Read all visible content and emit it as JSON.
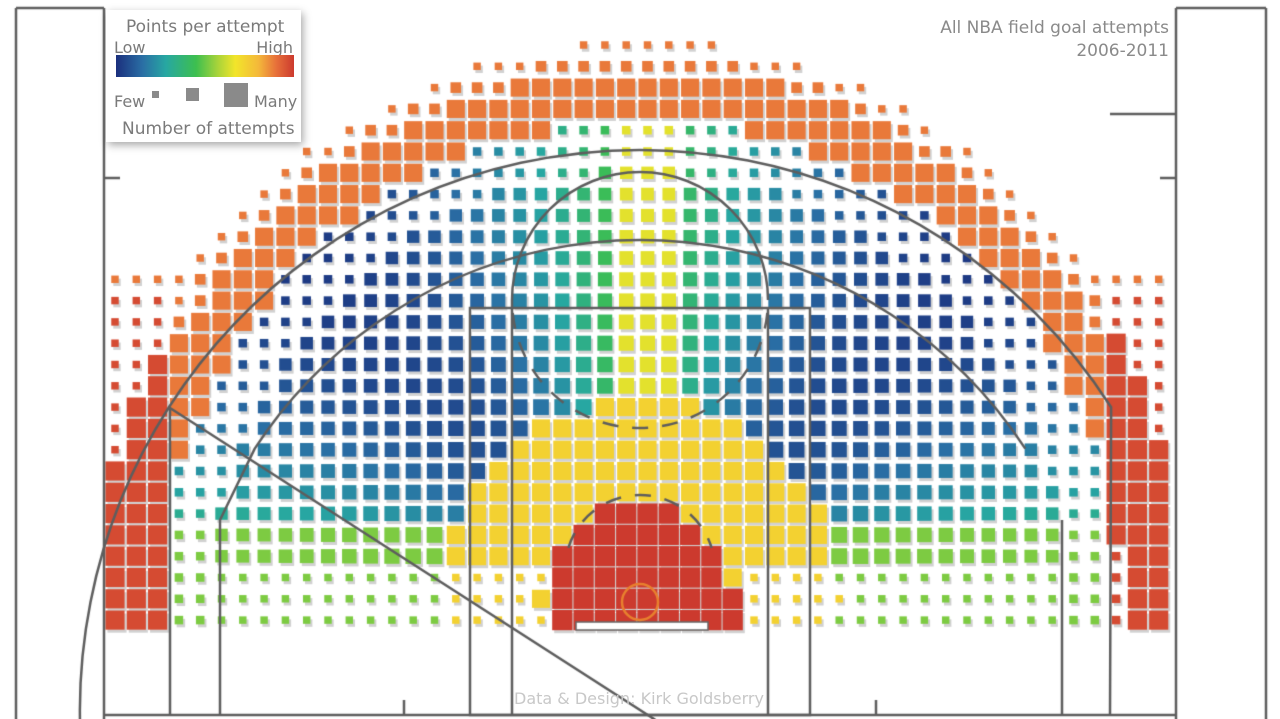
{
  "chart_data": {
    "type": "heatmap",
    "title": "All NBA field goal attempts",
    "subtitle": "2006-2011",
    "color_legend": {
      "label": "Points per attempt",
      "low_label": "Low",
      "high_label": "High",
      "colors": [
        "#1b2f7d",
        "#2a6fa5",
        "#27a7a2",
        "#3dbf4f",
        "#a7d33a",
        "#f2e52a",
        "#f4b83a",
        "#e7703a",
        "#cc3a2e"
      ]
    },
    "size_legend": {
      "label": "Number of attempts",
      "few_label": "Few",
      "many_label": "Many"
    },
    "zones": [
      {
        "zone": "restricted area",
        "points_per_attempt": "high",
        "color": "#cc3a2e",
        "attempts": "many"
      },
      {
        "zone": "paint",
        "points_per_attempt": "medium-high",
        "color": "#f2e52a",
        "attempts": "many"
      },
      {
        "zone": "mid-range baseline",
        "points_per_attempt": "medium",
        "color": "#3dbf4f",
        "attempts": "medium"
      },
      {
        "zone": "mid-range wing",
        "points_per_attempt": "low",
        "color": "#1b2f7d",
        "attempts": "medium"
      },
      {
        "zone": "straightaway long two",
        "points_per_attempt": "medium",
        "color": "#a7d33a",
        "attempts": "medium"
      },
      {
        "zone": "corner three",
        "points_per_attempt": "high",
        "color": "#cc3a2e",
        "attempts": "many"
      },
      {
        "zone": "above-the-break three",
        "points_per_attempt": "high",
        "color": "#e7703a",
        "attempts": "many"
      }
    ],
    "grid": false
  },
  "credit": "Data & Design: Kirk Goldsberry"
}
